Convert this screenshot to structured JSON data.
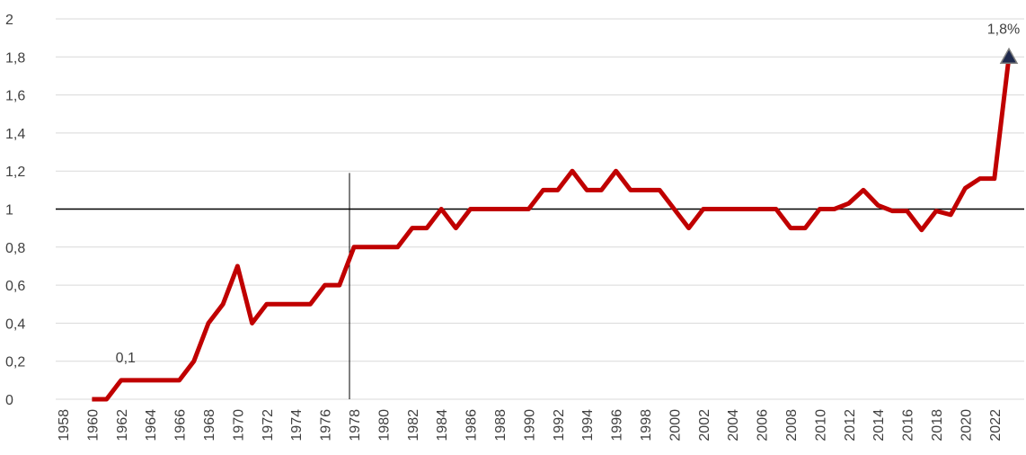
{
  "chart_data": {
    "type": "line",
    "categories": [
      "1958",
      null,
      "1960",
      null,
      "1962",
      null,
      "1964",
      null,
      "1966",
      null,
      "1968",
      null,
      "1970",
      null,
      "1972",
      null,
      "1974",
      null,
      "1976",
      null,
      "1978",
      null,
      "1980",
      null,
      "1982",
      null,
      "1984",
      null,
      "1986",
      null,
      "1988",
      null,
      "1990",
      null,
      "1992",
      null,
      "1994",
      null,
      "1996",
      null,
      "1998",
      null,
      "2000",
      null,
      "2002",
      null,
      "2004",
      null,
      "2006",
      null,
      "2008",
      null,
      "2010",
      null,
      "2012",
      null,
      "2014",
      null,
      "2016",
      null,
      "2018",
      null,
      "2020",
      null,
      "2022",
      null
    ],
    "values": [
      null,
      null,
      0,
      0,
      0.1,
      0.1,
      0.1,
      0.1,
      0.1,
      0.2,
      0.4,
      0.5,
      0.7,
      0.4,
      0.5,
      0.5,
      0.5,
      0.5,
      0.6,
      0.6,
      0.8,
      0.8,
      0.8,
      0.8,
      0.9,
      0.9,
      1.0,
      0.9,
      1.0,
      1.0,
      1.0,
      1.0,
      1.0,
      1.1,
      1.1,
      1.2,
      1.1,
      1.1,
      1.2,
      1.1,
      1.1,
      1.1,
      1.0,
      0.9,
      1.0,
      1.0,
      1.0,
      1.0,
      1.0,
      1.0,
      0.9,
      0.9,
      1.0,
      1.0,
      1.03,
      1.1,
      1.02,
      0.99,
      0.99,
      0.89,
      0.99,
      0.97,
      1.11,
      1.16,
      1.16,
      1.8
    ],
    "value_labels": [
      null,
      null,
      null,
      null,
      "0,1",
      null,
      null,
      null,
      null,
      null,
      null,
      null,
      null,
      null,
      null,
      null,
      null,
      null,
      null,
      null,
      null,
      null,
      null,
      null,
      null,
      null,
      null,
      null,
      null,
      null,
      null,
      null,
      null,
      null,
      null,
      null,
      null,
      null,
      null,
      null,
      null,
      null,
      null,
      null,
      null,
      null,
      null,
      null,
      null,
      null,
      null,
      null,
      null,
      null,
      null,
      null,
      null,
      null,
      null,
      null,
      null,
      null,
      null,
      null,
      null,
      "1,8%"
    ],
    "color": "#c00000",
    "ylim": [
      0,
      2
    ],
    "yticks": [
      0,
      {
        "value": 0.2,
        "label": "0,2"
      },
      {
        "value": 0.4,
        "label": "0,4"
      },
      {
        "value": 0.6,
        "label": "0,6"
      },
      {
        "value": 0.8,
        "label": "0,8"
      },
      1,
      {
        "value": 1.2,
        "label": "1,2"
      },
      {
        "value": 1.4,
        "label": "1,4"
      },
      {
        "value": 1.6,
        "label": "1,6"
      },
      {
        "value": 1.8,
        "label": "1,8"
      },
      2
    ],
    "grid": true,
    "hline": 1,
    "vline": {
      "x": "1978",
      "ymax": 1.19
    }
  }
}
